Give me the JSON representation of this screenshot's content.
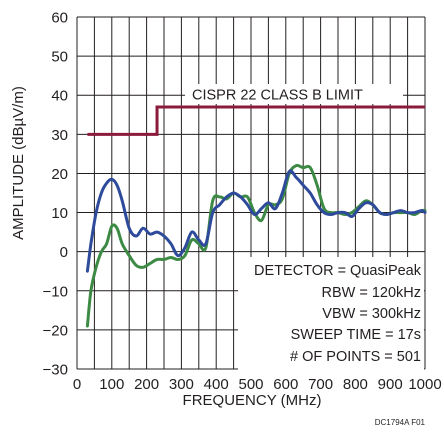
{
  "chart_data": {
    "type": "line",
    "xlabel": "FREQUENCY (MHz)",
    "ylabel": "AMPLITUDE (dBµV/m)",
    "xlim": [
      0,
      1000
    ],
    "ylim": [
      -30,
      60
    ],
    "xticks": [
      0,
      100,
      200,
      300,
      400,
      500,
      600,
      700,
      800,
      900,
      1000
    ],
    "yticks": [
      -30,
      -20,
      -10,
      0,
      10,
      20,
      30,
      40,
      50,
      60
    ],
    "grid": true,
    "limit_line": {
      "label": "CISPR 22 CLASS B LIMIT",
      "color": "#8b1a3b",
      "x": [
        30,
        230,
        230,
        1000
      ],
      "y": [
        30,
        30,
        37,
        37
      ]
    },
    "series": [
      {
        "color": "#2e4b9b",
        "x": [
          30,
          40,
          55,
          70,
          85,
          100,
          115,
          130,
          150,
          170,
          190,
          210,
          230,
          250,
          270,
          290,
          310,
          330,
          350,
          370,
          390,
          410,
          430,
          450,
          470,
          490,
          510,
          530,
          550,
          570,
          590,
          610,
          630,
          650,
          670,
          690,
          710,
          730,
          750,
          770,
          790,
          810,
          830,
          850,
          870,
          890,
          910,
          930,
          950,
          970,
          990,
          1000
        ],
        "y": [
          -5,
          2,
          10,
          15,
          17.5,
          18.5,
          17,
          13,
          6,
          4,
          6,
          4.5,
          5,
          4,
          2,
          -1,
          1,
          5,
          3,
          2,
          10,
          12,
          14,
          15,
          14,
          12,
          9.5,
          11,
          12.5,
          11,
          15,
          20.5,
          19,
          17,
          15,
          12,
          10,
          9.5,
          10,
          10,
          9,
          11,
          12.5,
          12,
          10,
          9.5,
          10,
          10.5,
          10,
          10,
          10.5,
          10
        ]
      },
      {
        "color": "#3d8a45",
        "x": [
          30,
          40,
          55,
          70,
          85,
          100,
          115,
          130,
          150,
          170,
          190,
          210,
          230,
          250,
          270,
          290,
          310,
          330,
          350,
          370,
          390,
          410,
          430,
          450,
          470,
          490,
          510,
          530,
          550,
          570,
          590,
          610,
          630,
          650,
          670,
          690,
          710,
          730,
          750,
          770,
          790,
          810,
          830,
          850,
          870,
          890,
          910,
          930,
          950,
          970,
          990,
          1000
        ],
        "y": [
          -19,
          -10,
          -4,
          0,
          2,
          6.5,
          6,
          2,
          -1,
          -3.5,
          -4,
          -3,
          -2,
          -2,
          -1.5,
          -2,
          -1,
          3,
          2,
          1,
          13,
          14,
          13.5,
          15,
          14,
          14,
          10,
          8,
          12,
          12,
          13.5,
          20,
          22,
          21.5,
          21.5,
          17,
          11,
          10,
          10,
          9.5,
          10,
          11.5,
          13,
          12,
          10,
          9.5,
          10,
          10,
          10,
          9.5,
          10.5,
          10.5
        ]
      }
    ],
    "annotations": [
      "DETECTOR = QuasiPeak",
      "RBW = 120kHz",
      "VBW = 300kHz",
      "SWEEP TIME = 17s",
      "# OF POINTS = 501"
    ],
    "figure_id": "DC1794A F01"
  }
}
